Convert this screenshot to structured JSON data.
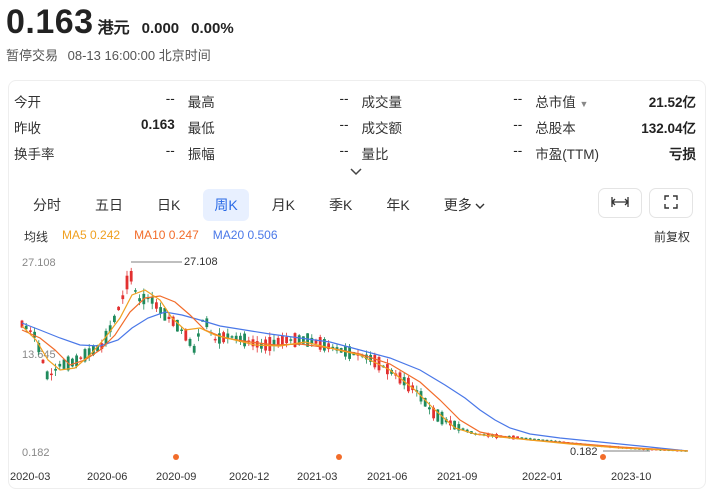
{
  "quote": {
    "price": "0.163",
    "currency": "港元",
    "change": "0.000",
    "change_pct": "0.00%",
    "status": "暂停交易",
    "time": "08-13 16:00:00 北京时间"
  },
  "stats": [
    [
      {
        "label": "今开",
        "value": "--"
      },
      {
        "label": "最高",
        "value": "--"
      },
      {
        "label": "成交量",
        "value": "--"
      },
      {
        "label": "总市值",
        "value": "21.52亿"
      }
    ],
    [
      {
        "label": "昨收",
        "value": "0.163"
      },
      {
        "label": "最低",
        "value": "--"
      },
      {
        "label": "成交额",
        "value": "--"
      },
      {
        "label": "总股本",
        "value": "132.04亿"
      }
    ],
    [
      {
        "label": "换手率",
        "value": "--"
      },
      {
        "label": "振幅",
        "value": "--"
      },
      {
        "label": "量比",
        "value": "--"
      },
      {
        "label": "市盈(TTM)",
        "value": "亏损"
      }
    ]
  ],
  "tabs": [
    "分时",
    "五日",
    "日K",
    "周K",
    "月K",
    "季K",
    "年K",
    "更多"
  ],
  "active_tab": "周K",
  "legend": {
    "main": "均线",
    "ma5": "MA5 0.242",
    "ma10": "MA10 0.247",
    "ma20": "MA20 0.506"
  },
  "adjust": "前复权",
  "chart": {
    "y_top": "27.108",
    "y_mid": "13.645",
    "y_bottom": "0.182",
    "max_label": "27.108",
    "min_label": "0.182",
    "x_labels": [
      "2020-03",
      "2020-06",
      "2020-09",
      "2020-12",
      "2021-03",
      "2021-06",
      "2021-09",
      "2022-01",
      "2023-10"
    ]
  },
  "colors": {
    "up": "#e23030",
    "down": "#1f8a5c",
    "ma5": "#f0a020",
    "ma10": "#f26c2a",
    "ma20": "#4a78e8",
    "active_tab": "#2a6ae6"
  },
  "chart_data": {
    "type": "candlestick",
    "ylim": [
      0.182,
      27.108
    ],
    "max": 27.108,
    "min": 0.182,
    "series": [
      {
        "name": "MA5 0.242"
      },
      {
        "name": "MA10 0.247"
      },
      {
        "name": "MA20 0.506"
      }
    ]
  }
}
